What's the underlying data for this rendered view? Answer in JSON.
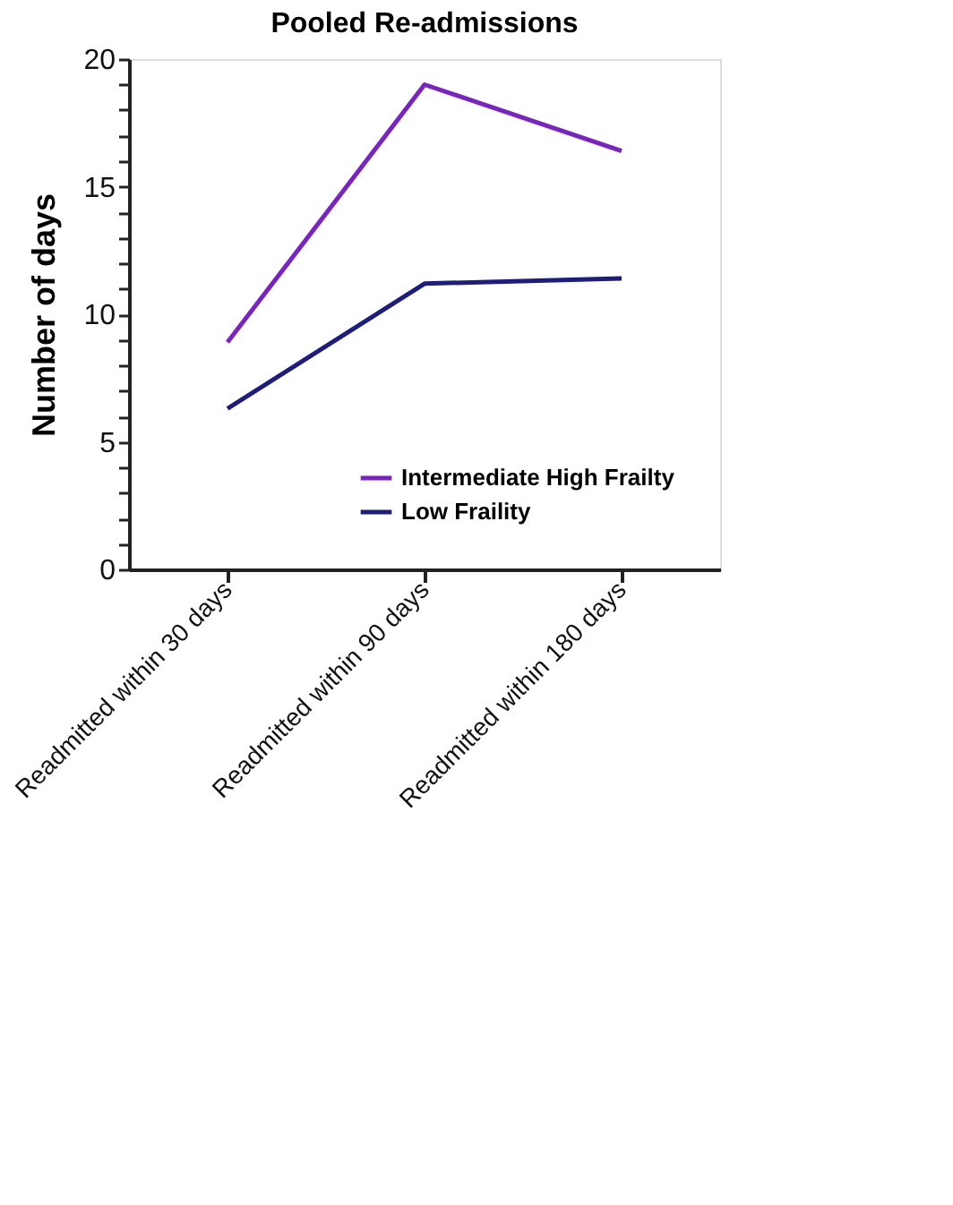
{
  "chart_data": {
    "type": "line",
    "title": "Pooled Re-admissions",
    "ylabel": "Number of days",
    "categories": [
      "Readmitted within 30 days",
      "Readmitted within 90 days",
      "Readmitted within 180 days"
    ],
    "series": [
      {
        "name": "Intermediate High Frailty",
        "color": "#7b22c4",
        "values": [
          8.9,
          19.0,
          16.4
        ]
      },
      {
        "name": "Low Fraility",
        "color": "#1c1c82",
        "values": [
          6.3,
          11.2,
          11.4
        ]
      }
    ],
    "ylim": [
      0,
      20
    ],
    "yticks": [
      0,
      {
        "value": 1,
        "label": null
      },
      {
        "value": 2,
        "label": null
      },
      {
        "value": 3,
        "label": null
      },
      {
        "value": 4,
        "label": null
      },
      5,
      {
        "value": 6,
        "label": null
      },
      {
        "value": 7,
        "label": null
      },
      {
        "value": 8,
        "label": null
      },
      {
        "value": 9,
        "label": null
      },
      10,
      {
        "value": 11,
        "label": null
      },
      {
        "value": 12,
        "label": null
      },
      {
        "value": 13,
        "label": null
      },
      {
        "value": 14,
        "label": null
      },
      15,
      {
        "value": 16,
        "label": null
      },
      {
        "value": 17,
        "label": null
      },
      {
        "value": 18,
        "label": null
      },
      {
        "value": 19,
        "label": null
      },
      20
    ],
    "grid": false,
    "legend": "bottom right",
    "marker": "none",
    "line_style": "solid"
  }
}
